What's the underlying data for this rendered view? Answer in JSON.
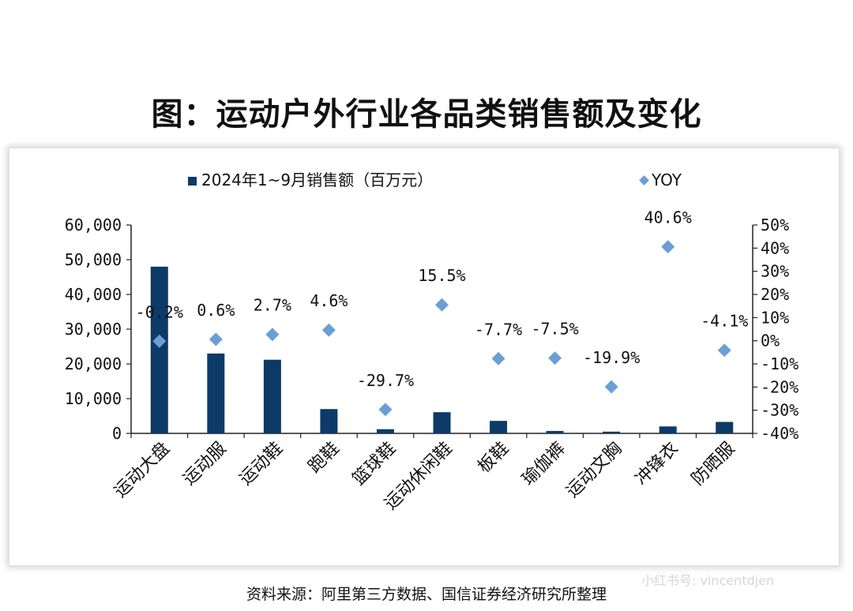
{
  "title": "图：运动户外行业各品类销售额及变化",
  "source": "资料来源：阿里第三方数据、国信证券经济研究所整理",
  "watermark": "小红书号: vincentdjen",
  "colors": {
    "bar": "#0d3a66",
    "marker": "#6b9fd4"
  },
  "chart_data": {
    "type": "bar",
    "categories": [
      "运动大盘",
      "运动服",
      "运动鞋",
      "跑鞋",
      "篮球鞋",
      "运动休闲鞋",
      "板鞋",
      "瑜伽裤",
      "运动文胸",
      "冲锋衣",
      "防晒服"
    ],
    "series": [
      {
        "name": "2024年1~9月销售额（百万元）",
        "type": "bar",
        "axis": "left",
        "values": [
          48000,
          23000,
          21200,
          7000,
          1200,
          6100,
          3600,
          700,
          500,
          2000,
          3300
        ]
      },
      {
        "name": "YOY",
        "type": "scatter",
        "axis": "right",
        "values": [
          -0.2,
          0.6,
          2.7,
          4.6,
          -29.7,
          15.5,
          -7.7,
          -7.5,
          -19.9,
          40.6,
          -4.1
        ],
        "labels": [
          "-0.2%",
          "0.6%",
          "2.7%",
          "4.6%",
          "-29.7%",
          "15.5%",
          "-7.7%",
          "-7.5%",
          "-19.9%",
          "40.6%",
          "-4.1%"
        ]
      }
    ],
    "y_left": {
      "min": 0,
      "max": 60000,
      "ticks": [
        0,
        10000,
        20000,
        30000,
        40000,
        50000,
        60000
      ],
      "tick_labels": [
        "0",
        "10,000",
        "20,000",
        "30,000",
        "40,000",
        "50,000",
        "60,000"
      ]
    },
    "y_right": {
      "min": -40,
      "max": 50,
      "ticks": [
        -40,
        -30,
        -20,
        -10,
        0,
        10,
        20,
        30,
        40,
        50
      ],
      "tick_labels": [
        "-40%",
        "-30%",
        "-20%",
        "-10%",
        "0%",
        "10%",
        "20%",
        "30%",
        "40%",
        "50%"
      ]
    },
    "legend": {
      "position": "top",
      "entries": [
        "2024年1~9月销售额（百万元）",
        "YOY"
      ]
    },
    "grid": false
  }
}
